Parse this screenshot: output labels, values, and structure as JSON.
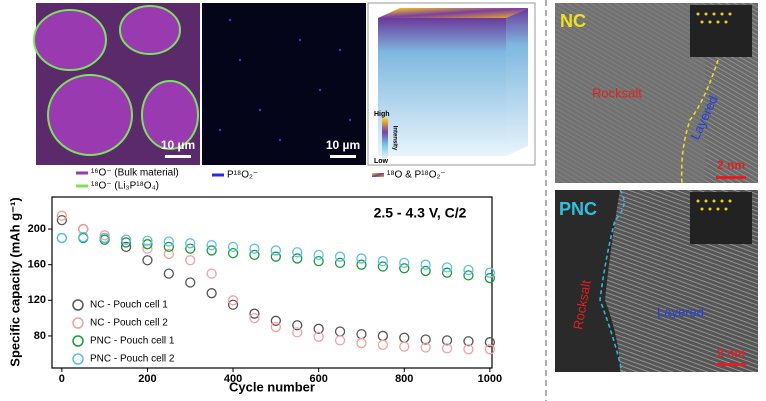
{
  "images": {
    "tof_sims": {
      "scale_bars": [
        "10 µm",
        "10 µm"
      ],
      "colorbar": {
        "high": "High",
        "title": "Intensity",
        "low": "Low"
      },
      "legend": [
        "¹⁶O⁻ (Bulk material)",
        "¹⁸O⁻ (Li₃P¹⁸O₄)",
        "P¹⁸O₂⁻",
        "¹⁸O & P¹⁸O₂⁻"
      ]
    },
    "tem": [
      {
        "label": "NC",
        "phase_1": "Rocksalt",
        "phase_2": "Layered",
        "scale_bar": "2 nm"
      },
      {
        "label": "PNC",
        "phase_1": "Rocksalt",
        "phase_2": "Layered",
        "scale_bar": "2 nm"
      }
    ]
  },
  "chart_data": {
    "type": "scatter",
    "annotation": "2.5 - 4.3 V, C/2",
    "x_label": "Cycle number",
    "y_label": "Specific capacity (mAh g⁻¹)",
    "x": [
      0,
      50,
      100,
      150,
      200,
      250,
      300,
      350,
      400,
      450,
      500,
      550,
      600,
      650,
      700,
      750,
      800,
      850,
      900,
      950,
      1000
    ],
    "series": [
      {
        "name": "NC - Pouch cell 1",
        "color": "#555555",
        "values": [
          210,
          200,
          190,
          180,
          165,
          150,
          140,
          128,
          115,
          105,
          97,
          92,
          88,
          85,
          82,
          80,
          78,
          76,
          75,
          74,
          73
        ]
      },
      {
        "name": "NC - Pouch cell 2",
        "color": "#f2a0a0",
        "values": [
          215,
          200,
          193,
          188,
          178,
          172,
          165,
          150,
          120,
          100,
          90,
          84,
          79,
          75,
          72,
          70,
          68,
          67,
          66,
          65,
          65
        ]
      },
      {
        "name": "PNC - Pouch cell 1",
        "color": "#1a9a3a",
        "values": [
          190,
          190,
          188,
          185,
          183,
          180,
          178,
          176,
          173,
          171,
          169,
          167,
          164,
          162,
          160,
          158,
          156,
          153,
          151,
          148,
          145
        ]
      },
      {
        "name": "PNC - Pouch cell 2",
        "color": "#5bc0e8",
        "values": [
          190,
          191,
          190,
          188,
          187,
          186,
          184,
          182,
          180,
          178,
          176,
          174,
          171,
          169,
          167,
          164,
          162,
          160,
          157,
          154,
          151
        ]
      }
    ],
    "xlim": [
      -23,
      1005
    ],
    "ylim": [
      44,
      236
    ],
    "xticks": [
      0,
      200,
      400,
      600,
      800,
      1000
    ],
    "yticks": [
      80,
      120,
      160,
      200
    ],
    "legend": "lower left"
  }
}
